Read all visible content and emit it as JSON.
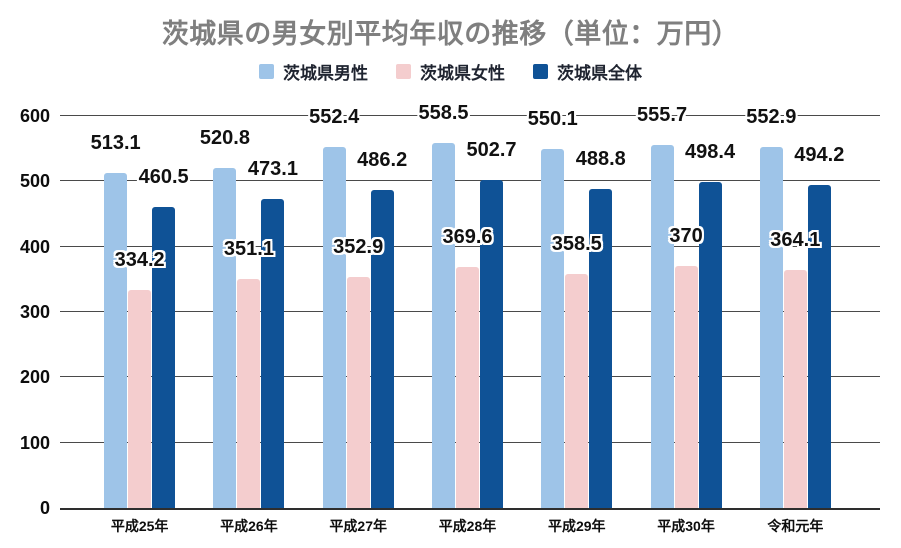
{
  "chart_data": {
    "type": "bar",
    "title": "茨城県の男女別平均年収の推移（単位：万円）",
    "categories": [
      "平成25年",
      "平成26年",
      "平成27年",
      "平成28年",
      "平成29年",
      "平成30年",
      "令和元年"
    ],
    "series": [
      {
        "name": "茨城県男性",
        "key": "male",
        "color": "#9EC4E8",
        "values": [
          513.1,
          520.8,
          552.4,
          558.5,
          550.1,
          555.7,
          552.9
        ]
      },
      {
        "name": "茨城県女性",
        "key": "female",
        "color": "#F4CDCE",
        "values": [
          334.2,
          351.1,
          352.9,
          369.6,
          358.5,
          370,
          364.1
        ]
      },
      {
        "name": "茨城県全体",
        "key": "total",
        "color": "#0F5296",
        "values": [
          460.5,
          473.1,
          486.2,
          502.7,
          488.8,
          498.4,
          494.2
        ]
      }
    ],
    "ylim": [
      0,
      600
    ],
    "yticks": [
      0,
      100,
      200,
      300,
      400,
      500,
      600
    ],
    "grid": true,
    "legend_position": "top",
    "colors": {
      "title_text": "#7F7F7F",
      "gridline": "#4a4a4a",
      "axis_line": "#2e2e2e",
      "value_label_text": "#111111",
      "legend_text": "#1F2430"
    }
  }
}
